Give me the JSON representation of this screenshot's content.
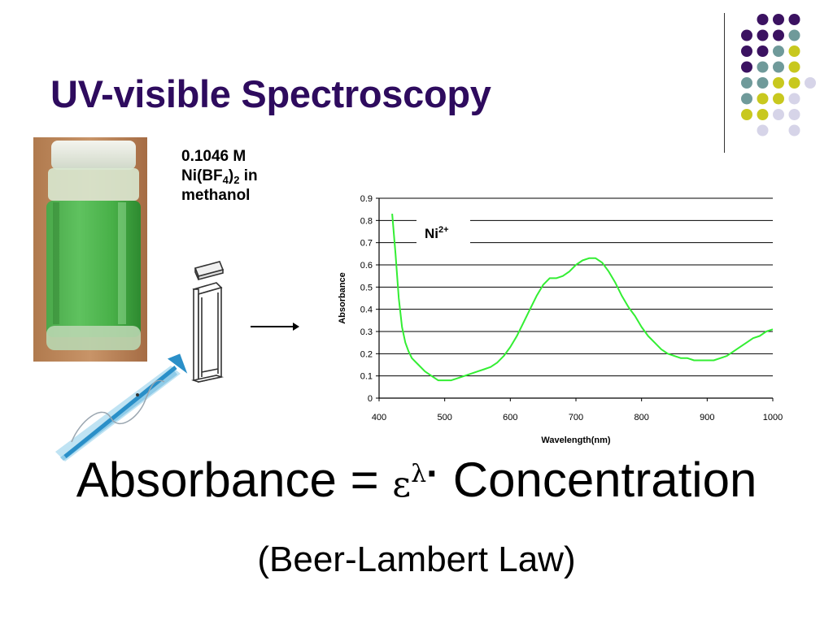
{
  "slide": {
    "title": "UV-visible Spectroscopy",
    "sample": {
      "line1": "0.1046 M",
      "formula_prefix": "Ni(BF",
      "formula_sub1": "4",
      "formula_mid": ")",
      "formula_sub2": "2",
      "formula_suffix": " in",
      "line3": "methanol"
    },
    "equation": {
      "lhs": "Absorbance = ",
      "epsilon": "ε",
      "lambda": "λ",
      "dot": "·",
      "rhs": " Concentration"
    },
    "law": "(Beer-Lambert Law)"
  },
  "colors": {
    "title": "#2e0b5e",
    "curve": "#33ee33",
    "dot_purple": "#3b1261",
    "dot_teal": "#6f9a9a",
    "dot_yellow": "#c8c81e",
    "dot_lavender": "#d6d4e8",
    "liquid": "#3fae3f",
    "beam": "#2a8fc8"
  },
  "icons": [
    "vial-photo",
    "cuvette-icon",
    "arrow-right-icon",
    "light-beam-icon",
    "wave-icon",
    "dot-grid-decoration"
  ],
  "chart_data": {
    "type": "line",
    "title": "",
    "annotation": "Ni",
    "annotation_sup": "2+",
    "xlabel": "Wavelength(nm)",
    "ylabel": "Absorbance",
    "xlim": [
      400,
      1000
    ],
    "ylim": [
      0,
      0.9
    ],
    "xticks": [
      "400",
      "500",
      "600",
      "700",
      "800",
      "900",
      "1000"
    ],
    "yticks": [
      "0",
      "0.1",
      "0.2",
      "0.3",
      "0.4",
      "0.5",
      "0.6",
      "0.7",
      "0.8",
      "0.9"
    ],
    "grid": "horizontal",
    "series": [
      {
        "x": [
          420,
          425,
          430,
          435,
          440,
          445,
          450,
          460,
          470,
          480,
          490,
          500,
          510,
          520,
          530,
          540,
          550,
          560,
          570,
          580,
          590,
          600,
          610,
          620,
          630,
          640,
          650,
          660,
          665,
          670,
          680,
          690,
          700,
          710,
          720,
          730,
          740,
          750,
          760,
          770,
          780,
          790,
          800,
          810,
          820,
          830,
          840,
          850,
          860,
          870,
          880,
          890,
          900,
          910,
          920,
          930,
          940,
          950,
          960,
          970,
          980,
          990,
          1000
        ],
        "y": [
          0.83,
          0.65,
          0.45,
          0.32,
          0.25,
          0.21,
          0.18,
          0.15,
          0.12,
          0.1,
          0.08,
          0.08,
          0.08,
          0.09,
          0.1,
          0.11,
          0.12,
          0.13,
          0.14,
          0.16,
          0.19,
          0.23,
          0.28,
          0.34,
          0.4,
          0.46,
          0.51,
          0.54,
          0.54,
          0.54,
          0.55,
          0.57,
          0.6,
          0.62,
          0.63,
          0.63,
          0.61,
          0.57,
          0.52,
          0.46,
          0.41,
          0.37,
          0.32,
          0.28,
          0.25,
          0.22,
          0.2,
          0.19,
          0.18,
          0.18,
          0.17,
          0.17,
          0.17,
          0.17,
          0.18,
          0.19,
          0.21,
          0.23,
          0.25,
          0.27,
          0.28,
          0.3,
          0.31
        ]
      }
    ]
  }
}
